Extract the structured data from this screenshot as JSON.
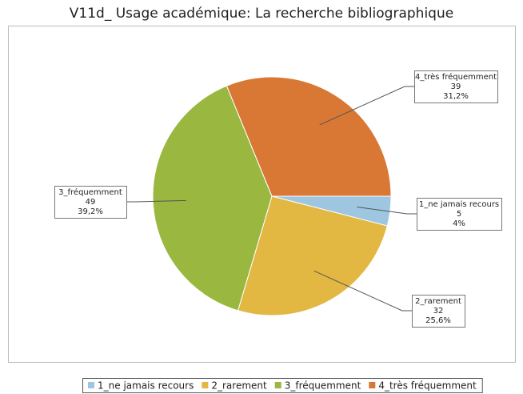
{
  "chart_data": {
    "type": "pie",
    "title": "V11d_ Usage académique: La recherche bibliographique",
    "categories": [
      "1_ne jamais recours",
      "2_rarement",
      "3_fréquemment",
      "4_très fréquemment"
    ],
    "values": [
      4,
      25.6,
      39.2,
      31.2
    ],
    "value_labels": [
      "4%",
      "25,6%",
      "39,2%",
      "31,2%"
    ],
    "counts": [
      5,
      32,
      49,
      39
    ],
    "colors": [
      "#9ec6e0",
      "#e2b843",
      "#9ab73f",
      "#d97834"
    ],
    "legend": "bottom"
  }
}
